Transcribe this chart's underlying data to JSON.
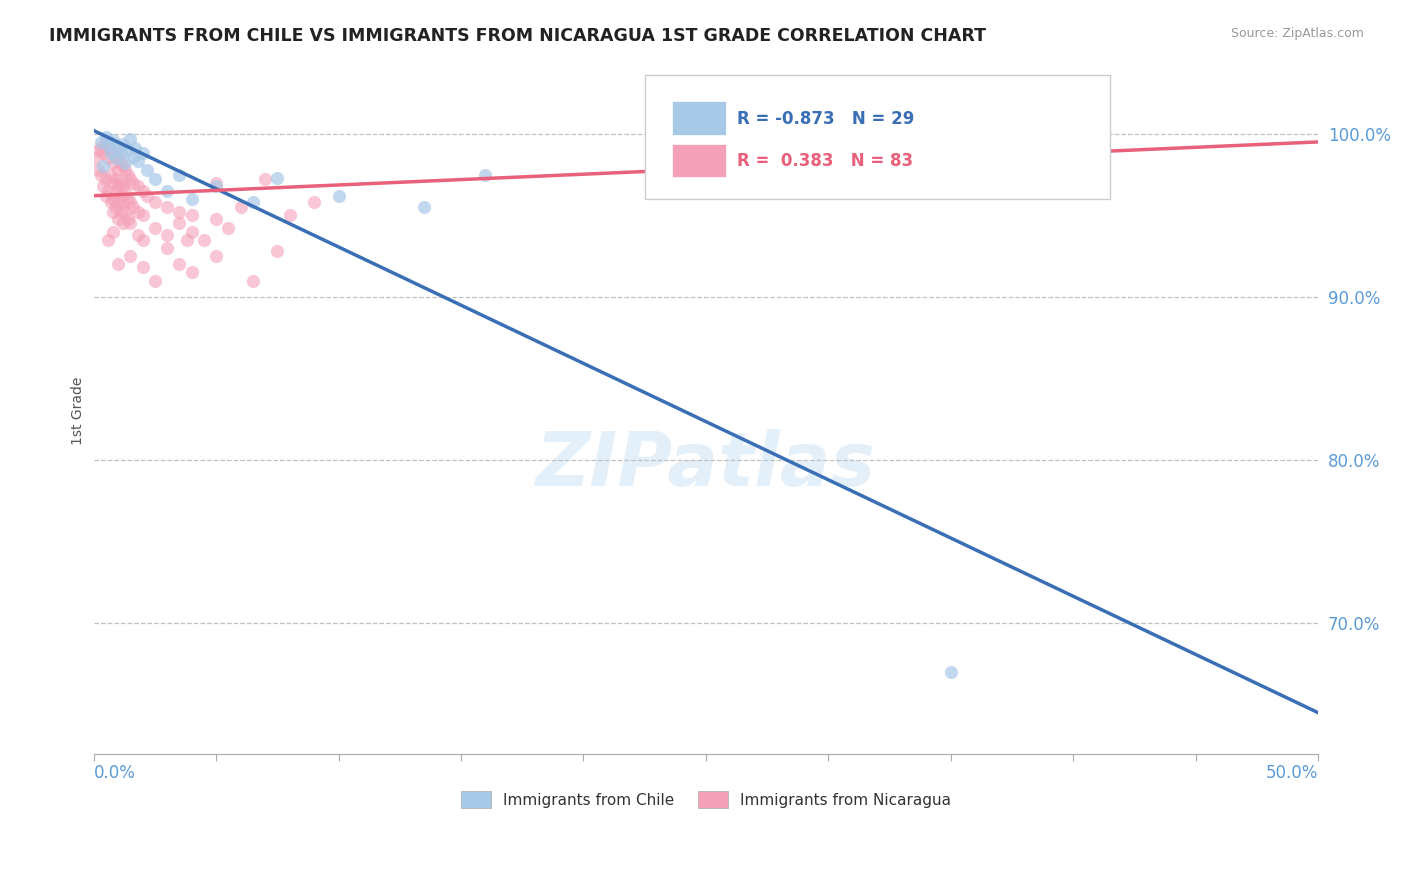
{
  "title": "IMMIGRANTS FROM CHILE VS IMMIGRANTS FROM NICARAGUA 1ST GRADE CORRELATION CHART",
  "source_text": "Source: ZipAtlas.com",
  "ylabel_text": "1st Grade",
  "x_label_bottom_left": "0.0%",
  "x_label_bottom_right": "50.0%",
  "xlim": [
    0.0,
    50.0
  ],
  "ylim": [
    62.0,
    104.0
  ],
  "y_ticks": [
    70.0,
    80.0,
    90.0,
    100.0
  ],
  "y_tick_labels": [
    "70.0%",
    "80.0%",
    "90.0%",
    "100.0%"
  ],
  "x_ticks": [
    0.0,
    5.0,
    10.0,
    15.0,
    20.0,
    25.0,
    30.0,
    35.0,
    40.0,
    45.0,
    50.0
  ],
  "blue_color": "#a8c8e8",
  "pink_color": "#f4a0b8",
  "blue_line_color": "#3a6fb5",
  "pink_line_color": "#e8607a",
  "legend_R_blue": "-0.873",
  "legend_N_blue": "29",
  "legend_R_pink": "0.383",
  "legend_N_pink": "83",
  "legend_label_blue": "Immigrants from Chile",
  "legend_label_pink": "Immigrants from Nicaragua",
  "watermark": "ZIPatlas",
  "title_color": "#222222",
  "tick_label_color": "#5b9bd5",
  "blue_scatter": [
    [
      0.3,
      99.5
    ],
    [
      0.5,
      99.8
    ],
    [
      0.6,
      99.3
    ],
    [
      0.7,
      98.8
    ],
    [
      0.8,
      99.6
    ],
    [
      0.9,
      98.5
    ],
    [
      1.0,
      99.2
    ],
    [
      1.1,
      98.9
    ],
    [
      1.2,
      99.4
    ],
    [
      1.3,
      98.2
    ],
    [
      1.4,
      99.0
    ],
    [
      1.5,
      99.7
    ],
    [
      1.6,
      98.6
    ],
    [
      1.7,
      99.1
    ],
    [
      1.8,
      98.3
    ],
    [
      2.0,
      98.8
    ],
    [
      2.2,
      97.8
    ],
    [
      2.5,
      97.2
    ],
    [
      3.0,
      96.5
    ],
    [
      3.5,
      97.5
    ],
    [
      4.0,
      96.0
    ],
    [
      5.0,
      96.8
    ],
    [
      6.5,
      95.8
    ],
    [
      7.5,
      97.3
    ],
    [
      10.0,
      96.2
    ],
    [
      13.5,
      95.5
    ],
    [
      16.0,
      97.5
    ],
    [
      35.0,
      67.0
    ],
    [
      0.4,
      98.0
    ]
  ],
  "pink_scatter": [
    [
      0.1,
      98.5
    ],
    [
      0.2,
      99.0
    ],
    [
      0.2,
      97.8
    ],
    [
      0.3,
      99.2
    ],
    [
      0.3,
      97.5
    ],
    [
      0.4,
      98.8
    ],
    [
      0.4,
      96.8
    ],
    [
      0.5,
      99.5
    ],
    [
      0.5,
      97.2
    ],
    [
      0.5,
      96.2
    ],
    [
      0.6,
      98.5
    ],
    [
      0.6,
      96.5
    ],
    [
      0.7,
      99.0
    ],
    [
      0.7,
      97.5
    ],
    [
      0.7,
      95.8
    ],
    [
      0.8,
      98.2
    ],
    [
      0.8,
      97.0
    ],
    [
      0.8,
      96.0
    ],
    [
      0.8,
      95.2
    ],
    [
      0.9,
      98.8
    ],
    [
      0.9,
      97.2
    ],
    [
      0.9,
      96.5
    ],
    [
      0.9,
      95.5
    ],
    [
      1.0,
      98.5
    ],
    [
      1.0,
      97.8
    ],
    [
      1.0,
      96.8
    ],
    [
      1.0,
      95.8
    ],
    [
      1.0,
      94.8
    ],
    [
      1.1,
      98.2
    ],
    [
      1.1,
      97.0
    ],
    [
      1.1,
      96.2
    ],
    [
      1.1,
      95.2
    ],
    [
      1.2,
      98.0
    ],
    [
      1.2,
      96.8
    ],
    [
      1.2,
      95.8
    ],
    [
      1.2,
      94.5
    ],
    [
      1.3,
      97.8
    ],
    [
      1.3,
      96.5
    ],
    [
      1.3,
      95.2
    ],
    [
      1.4,
      97.5
    ],
    [
      1.4,
      96.0
    ],
    [
      1.4,
      94.8
    ],
    [
      1.5,
      97.2
    ],
    [
      1.5,
      95.8
    ],
    [
      1.5,
      94.5
    ],
    [
      1.6,
      97.0
    ],
    [
      1.6,
      95.5
    ],
    [
      1.8,
      96.8
    ],
    [
      1.8,
      95.2
    ],
    [
      1.8,
      93.8
    ],
    [
      2.0,
      96.5
    ],
    [
      2.0,
      95.0
    ],
    [
      2.0,
      93.5
    ],
    [
      2.2,
      96.2
    ],
    [
      2.5,
      95.8
    ],
    [
      2.5,
      94.2
    ],
    [
      3.0,
      95.5
    ],
    [
      3.0,
      93.8
    ],
    [
      3.5,
      95.2
    ],
    [
      3.5,
      94.5
    ],
    [
      4.0,
      95.0
    ],
    [
      4.0,
      94.0
    ],
    [
      4.5,
      93.5
    ],
    [
      5.0,
      97.0
    ],
    [
      5.0,
      94.8
    ],
    [
      5.5,
      94.2
    ],
    [
      6.0,
      95.5
    ],
    [
      7.0,
      97.2
    ],
    [
      8.0,
      95.0
    ],
    [
      9.0,
      95.8
    ],
    [
      1.5,
      92.5
    ],
    [
      2.0,
      91.8
    ],
    [
      3.0,
      93.0
    ],
    [
      3.5,
      92.0
    ],
    [
      4.0,
      91.5
    ],
    [
      5.0,
      92.5
    ],
    [
      6.5,
      91.0
    ],
    [
      7.5,
      92.8
    ],
    [
      0.6,
      93.5
    ],
    [
      1.0,
      92.0
    ],
    [
      2.5,
      91.0
    ],
    [
      3.8,
      93.5
    ],
    [
      0.8,
      94.0
    ]
  ],
  "blue_line_x": [
    0.0,
    50.0
  ],
  "blue_line_y": [
    100.2,
    64.5
  ],
  "pink_line_x": [
    0.0,
    50.0
  ],
  "pink_line_y": [
    96.2,
    99.5
  ]
}
